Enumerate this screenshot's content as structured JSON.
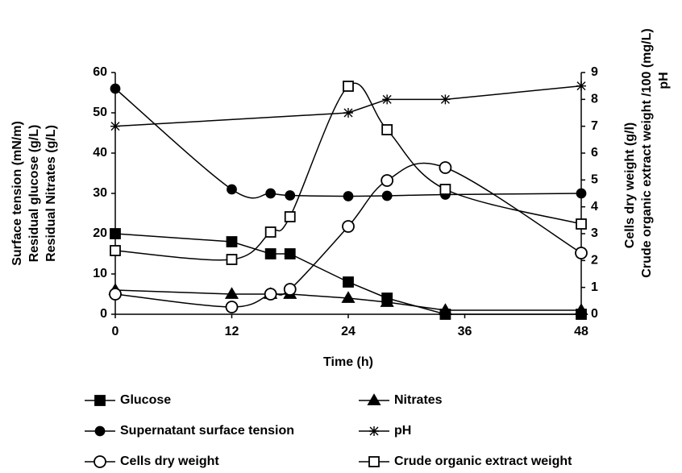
{
  "chart_data": {
    "type": "line",
    "x_label": "Time (h)",
    "y_label_lines": [
      "Surface tension (mN/m)",
      "Residual glucose (g/L)",
      "Residual Nitrates (g/L)"
    ],
    "y2_label_lines": [
      "Cells dry weight   (g/l)",
      "Crude organic extract weight /100 (mg/L)",
      "pH"
    ],
    "xlim": [
      0,
      48
    ],
    "xticks": [
      0,
      12,
      24,
      36,
      48
    ],
    "ylim": [
      0,
      60
    ],
    "yticks": [
      0,
      10,
      20,
      30,
      40,
      50,
      60
    ],
    "y2lim": [
      0,
      9
    ],
    "y2ticks": [
      0,
      1,
      2,
      3,
      4,
      5,
      6,
      7,
      8,
      9
    ],
    "series": [
      {
        "name": "Glucose",
        "color": "#000000",
        "marker": "square",
        "filled": true,
        "smooth": false,
        "x": [
          0,
          12,
          16,
          18,
          24,
          28,
          34,
          48
        ],
        "values": [
          20,
          18,
          15,
          15,
          8,
          4,
          0,
          0
        ]
      },
      {
        "name": "Nitrates",
        "color": "#000000",
        "marker": "triangle",
        "filled": true,
        "smooth": false,
        "x": [
          0,
          12,
          16,
          18,
          24,
          28,
          34,
          48
        ],
        "values": [
          6,
          5,
          5,
          5,
          4,
          3,
          1,
          1
        ]
      },
      {
        "name": "Supernatant surface tension",
        "color": "#000000",
        "marker": "circle",
        "filled": true,
        "smooth": true,
        "x": [
          0,
          12,
          16,
          18,
          24,
          28,
          34,
          48
        ],
        "values": [
          56,
          31,
          30,
          29.5,
          29.3,
          29.4,
          29.7,
          30
        ]
      },
      {
        "name": "pH",
        "color": "#000000",
        "marker": "star",
        "filled": true,
        "smooth": false,
        "axis": "y2",
        "x": [
          0,
          24,
          28,
          34,
          48
        ],
        "values": [
          7,
          7.5,
          8,
          8,
          8.5
        ]
      },
      {
        "name": "Cells dry weight",
        "color": "#000000",
        "marker": "circle",
        "filled": false,
        "smooth": true,
        "axis": "y2",
        "x": [
          0,
          12,
          16,
          18,
          24,
          28,
          34,
          48
        ],
        "values": [
          0.75,
          0.27,
          0.75,
          0.93,
          3.27,
          4.98,
          5.46,
          2.28
        ]
      },
      {
        "name": "Crude organic extract weight",
        "color": "#000000",
        "marker": "square",
        "filled": false,
        "smooth": true,
        "axis": "y2",
        "x": [
          0,
          12,
          16,
          18,
          24,
          28,
          34,
          48
        ],
        "values": [
          2.37,
          2.04,
          3.06,
          3.63,
          8.49,
          6.87,
          4.65,
          3.36
        ]
      }
    ]
  }
}
